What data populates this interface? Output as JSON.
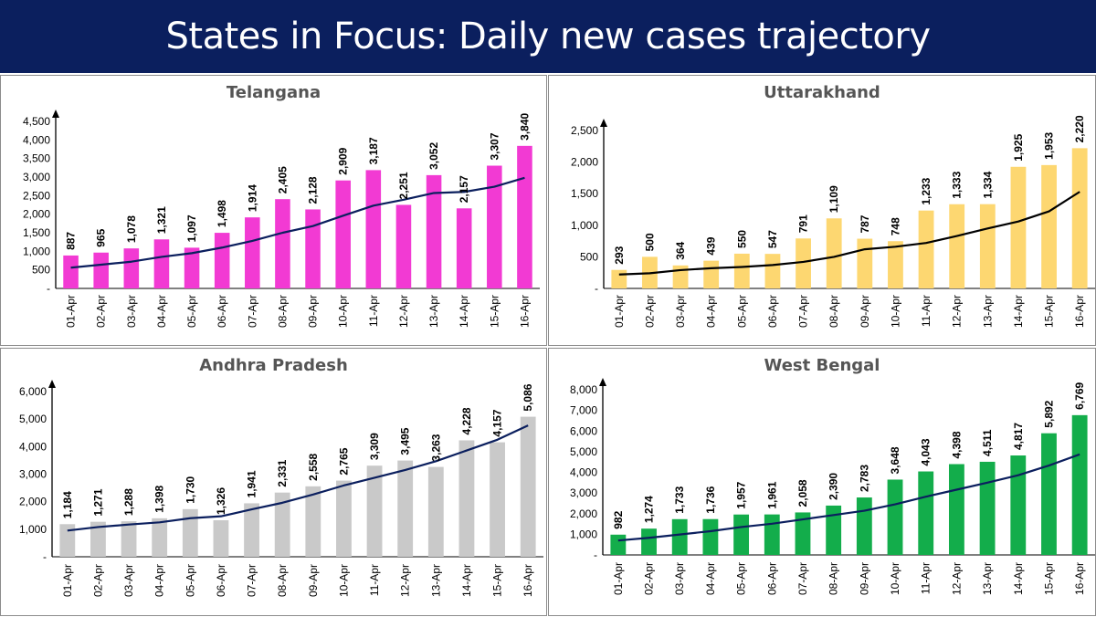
{
  "header": {
    "title": "States in Focus: Daily new cases trajectory",
    "background_color": "#0b1f5e",
    "text_color": "#ffffff"
  },
  "chart_data": [
    {
      "type": "bar",
      "title": "Telangana",
      "bar_color": "#f23ad3",
      "line_color": "#0b1f5e",
      "categories": [
        "01-Apr",
        "02-Apr",
        "03-Apr",
        "04-Apr",
        "05-Apr",
        "06-Apr",
        "07-Apr",
        "08-Apr",
        "09-Apr",
        "10-Apr",
        "11-Apr",
        "12-Apr",
        "13-Apr",
        "14-Apr",
        "15-Apr",
        "16-Apr"
      ],
      "values": [
        887,
        965,
        1078,
        1321,
        1097,
        1498,
        1914,
        2405,
        2128,
        2909,
        3187,
        2251,
        3052,
        2157,
        3307,
        3840
      ],
      "value_labels": [
        "887",
        "965",
        "1,078",
        "1,321",
        "1,097",
        "1,498",
        "1,914",
        "2,405",
        "2,128",
        "2,909",
        "3,187",
        "2,251",
        "3,052",
        "2,157",
        "3,307",
        "3,840"
      ],
      "trend": [
        560,
        640,
        720,
        850,
        950,
        1100,
        1280,
        1500,
        1680,
        1960,
        2230,
        2390,
        2570,
        2600,
        2740,
        2980
      ],
      "ylim": [
        0,
        4500
      ],
      "yticks": [
        0,
        500,
        1000,
        1500,
        2000,
        2500,
        3000,
        3500,
        4000,
        4500
      ],
      "ytick_labels": [
        "-",
        "500",
        "1,000",
        "1,500",
        "2,000",
        "2,500",
        "3,000",
        "3,500",
        "4,000",
        "4,500"
      ]
    },
    {
      "type": "bar",
      "title": "Uttarakhand",
      "bar_color": "#fdd771",
      "line_color": "#000000",
      "categories": [
        "01-Apr",
        "02-Apr",
        "03-Apr",
        "04-Apr",
        "05-Apr",
        "06-Apr",
        "07-Apr",
        "08-Apr",
        "09-Apr",
        "10-Apr",
        "11-Apr",
        "12-Apr",
        "13-Apr",
        "14-Apr",
        "15-Apr",
        "16-Apr"
      ],
      "values": [
        293,
        500,
        364,
        439,
        550,
        547,
        791,
        1109,
        787,
        748,
        1233,
        1333,
        1334,
        1925,
        1953,
        2220
      ],
      "value_labels": [
        "293",
        "500",
        "364",
        "439",
        "550",
        "547",
        "791",
        "1,109",
        "787",
        "748",
        "1,233",
        "1,333",
        "1,334",
        "1,925",
        "1,953",
        "2,220"
      ],
      "trend": [
        220,
        240,
        290,
        320,
        340,
        370,
        420,
        500,
        620,
        660,
        720,
        830,
        950,
        1060,
        1220,
        1530
      ],
      "ylim": [
        0,
        2500
      ],
      "yticks": [
        0,
        500,
        1000,
        1500,
        2000,
        2500
      ],
      "ytick_labels": [
        "-",
        "500",
        "1,000",
        "1,500",
        "2,000",
        "2,500"
      ]
    },
    {
      "type": "bar",
      "title": "Andhra Pradesh",
      "bar_color": "#c9c9c9",
      "line_color": "#0b1f5e",
      "categories": [
        "01-Apr",
        "02-Apr",
        "03-Apr",
        "04-Apr",
        "05-Apr",
        "06-Apr",
        "07-Apr",
        "08-Apr",
        "09-Apr",
        "10-Apr",
        "11-Apr",
        "12-Apr",
        "13-Apr",
        "14-Apr",
        "15-Apr",
        "16-Apr"
      ],
      "values": [
        1184,
        1271,
        1288,
        1398,
        1730,
        1326,
        1941,
        2331,
        2558,
        2765,
        3309,
        3495,
        3263,
        4228,
        4157,
        5086
      ],
      "value_labels": [
        "1,184",
        "1,271",
        "1,288",
        "1,398",
        "1,730",
        "1,326",
        "1,941",
        "2,331",
        "2,558",
        "2,765",
        "3,309",
        "3,495",
        "3,263",
        "4,228",
        "4,157",
        "5,086"
      ],
      "trend": [
        950,
        1080,
        1170,
        1250,
        1400,
        1470,
        1720,
        1960,
        2260,
        2590,
        2870,
        3150,
        3470,
        3860,
        4250,
        4770
      ],
      "ylim": [
        0,
        6000
      ],
      "yticks": [
        0,
        1000,
        2000,
        3000,
        4000,
        5000,
        6000
      ],
      "ytick_labels": [
        "-",
        "1,000",
        "2,000",
        "3,000",
        "4,000",
        "5,000",
        "6,000"
      ]
    },
    {
      "type": "bar",
      "title": "West Bengal",
      "bar_color": "#13ad4b",
      "line_color": "#0b1f5e",
      "categories": [
        "01-Apr",
        "02-Apr",
        "03-Apr",
        "04-Apr",
        "05-Apr",
        "06-Apr",
        "07-Apr",
        "08-Apr",
        "09-Apr",
        "10-Apr",
        "11-Apr",
        "12-Apr",
        "13-Apr",
        "14-Apr",
        "15-Apr",
        "16-Apr"
      ],
      "values": [
        982,
        1274,
        1733,
        1736,
        1957,
        1961,
        2058,
        2390,
        2783,
        3648,
        4043,
        4398,
        4511,
        4817,
        5892,
        6769
      ],
      "value_labels": [
        "982",
        "1,274",
        "1,733",
        "1,736",
        "1,957",
        "1,961",
        "2,058",
        "2,390",
        "2,783",
        "3,648",
        "4,043",
        "4,398",
        "4,511",
        "4,817",
        "5,892",
        "6,769"
      ],
      "trend": [
        700,
        830,
        990,
        1150,
        1350,
        1510,
        1720,
        1930,
        2140,
        2450,
        2820,
        3160,
        3500,
        3860,
        4330,
        4870
      ],
      "ylim": [
        0,
        8000
      ],
      "yticks": [
        0,
        1000,
        2000,
        3000,
        4000,
        5000,
        6000,
        7000,
        8000
      ],
      "ytick_labels": [
        "-",
        "1,000",
        "2,000",
        "3,000",
        "4,000",
        "5,000",
        "6,000",
        "7,000",
        "8,000"
      ]
    }
  ]
}
